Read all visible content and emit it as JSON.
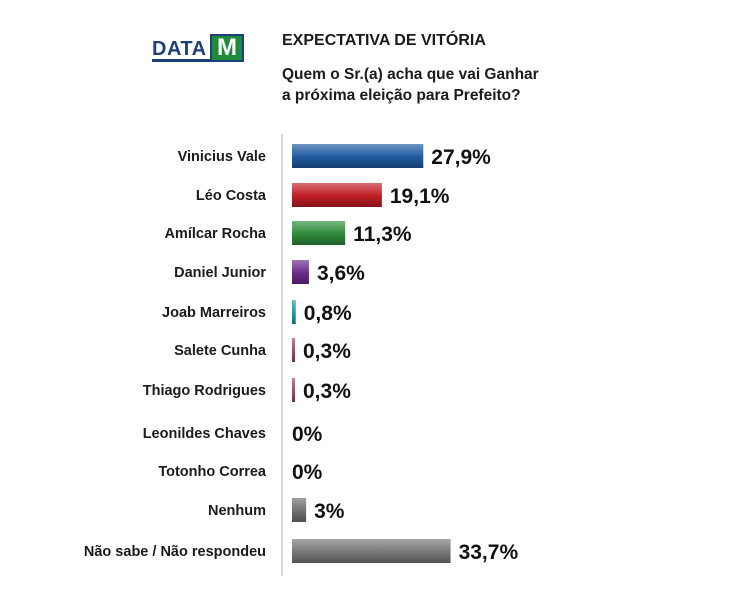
{
  "header": {
    "logo_data": "DATA",
    "logo_m": "M",
    "title": "EXPECTATIVA DE VITÓRIA",
    "question_line1": "Quem o Sr.(a) acha que vai Ganhar",
    "question_line2": "a próxima eleição para Prefeito?"
  },
  "chart_data": {
    "type": "bar",
    "orientation": "horizontal",
    "categories": [
      "Vinicius Vale",
      "Léo Costa",
      "Amílcar Rocha",
      "Daniel Junior",
      "Joab Marreiros",
      "Salete Cunha",
      "Thiago Rodrigues",
      "Leonildes Chaves",
      "Totonho Correa",
      "Nenhum",
      "Não sabe / Não respondeu"
    ],
    "values": [
      27.9,
      19.1,
      11.3,
      3.6,
      0.8,
      0.3,
      0.3,
      0,
      0,
      3,
      33.7
    ],
    "value_labels": [
      "27,9%",
      "19,1%",
      "11,3%",
      "3,6%",
      "0,8%",
      "0,3%",
      "0,3%",
      "0%",
      "0%",
      "3%",
      "33,7%"
    ],
    "colors": [
      "#1f5aa0",
      "#c01d25",
      "#2e8b3a",
      "#6a2a8a",
      "#1a9aa8",
      "#9a4a5a",
      "#9a4a5a",
      "#ffffff",
      "#ffffff",
      "#6f6f6f",
      "#777777"
    ],
    "unit": "%",
    "xlim": [
      0,
      34
    ],
    "grid": false,
    "legend": "none"
  }
}
